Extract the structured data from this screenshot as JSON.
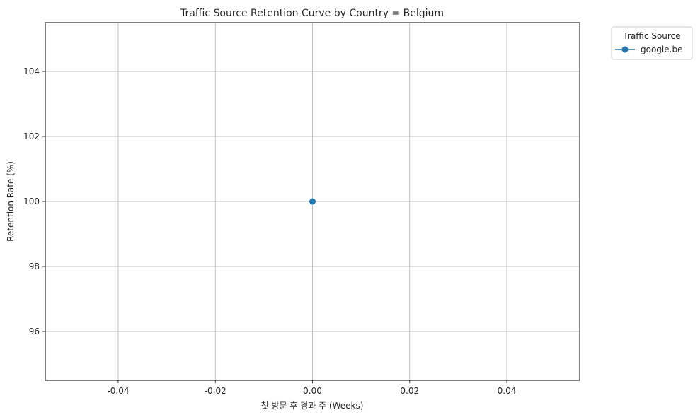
{
  "chart_data": {
    "type": "line",
    "title": "Traffic Source Retention Curve by Country = Belgium",
    "xlabel": "첫 방문 후 경과 주 (Weeks)",
    "ylabel": "Retention Rate (%)",
    "xlim": [
      -0.055,
      0.055
    ],
    "ylim": [
      94.5,
      105.5
    ],
    "xticks": [
      -0.04,
      -0.02,
      0.0,
      0.02,
      0.04
    ],
    "xtick_labels": [
      "-0.04",
      "-0.02",
      "0.00",
      "0.02",
      "0.04"
    ],
    "yticks": [
      96,
      98,
      100,
      102,
      104
    ],
    "ytick_labels": [
      "96",
      "98",
      "100",
      "102",
      "104"
    ],
    "grid": true,
    "legend": {
      "title": "Traffic Source",
      "placement": "outside-top-right"
    },
    "series": [
      {
        "name": "google.be",
        "color": "#1f77b4",
        "marker": "circle",
        "x": [
          0
        ],
        "y": [
          100
        ]
      }
    ]
  }
}
